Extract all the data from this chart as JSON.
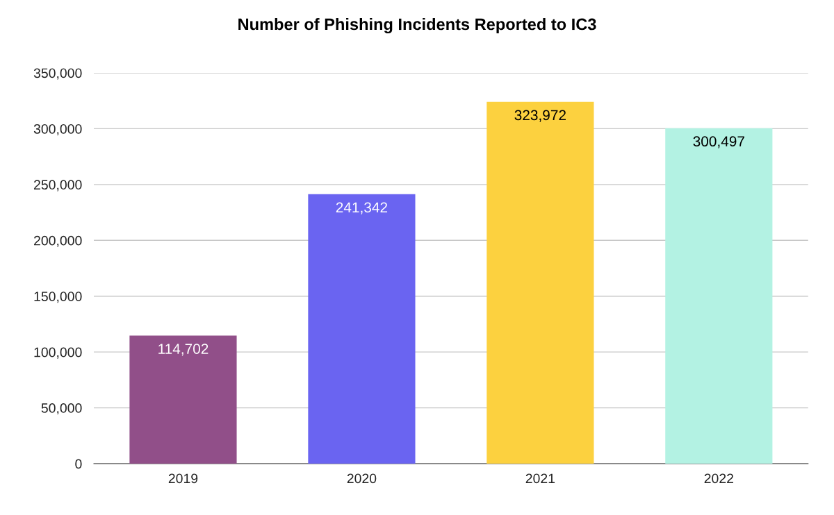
{
  "chart_data": {
    "type": "bar",
    "title": "Number of Phishing Incidents Reported to IC3",
    "categories": [
      "2019",
      "2020",
      "2021",
      "2022"
    ],
    "values": [
      114702,
      241342,
      323972,
      300497
    ],
    "colors": [
      "#914f89",
      "#6a64f1",
      "#fcd13f",
      "#b3f2e3"
    ],
    "ylim": [
      0,
      350000
    ],
    "yticks": [
      {
        "value": 0,
        "label": "0"
      },
      {
        "value": 50000,
        "label": "50,000"
      },
      {
        "value": 100000,
        "label": "100,000"
      },
      {
        "value": 150000,
        "label": "150,000"
      },
      {
        "value": 200000,
        "label": "200,000"
      },
      {
        "value": 250000,
        "label": "250,000"
      },
      {
        "value": 300000,
        "label": "300,000"
      },
      {
        "value": 350000,
        "label": "350,000"
      }
    ],
    "value_labels": [
      "114,702",
      "241,342",
      "323,972",
      "300,497"
    ],
    "grid": "y"
  }
}
